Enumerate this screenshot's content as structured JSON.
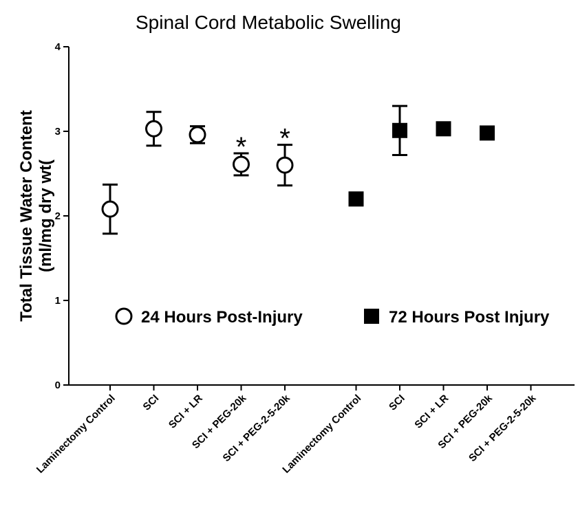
{
  "chart_data": {
    "type": "scatter",
    "title": "Spinal Cord Metabolic Swelling",
    "ylabel": [
      "Total Tissue Water Content",
      "(ml/mg dry wt("
    ],
    "categories": [
      "Laminectomy Control",
      "SCI",
      "SCI + LR",
      "SCI + PEG-20k",
      "SCI + PEG-2-5-20k",
      "Laminectomy Control",
      "SCI",
      "SCI + LR",
      "SCI + PEG-20k",
      "SCI + PEG-2-5-20k"
    ],
    "series": [
      {
        "name": "24 Hours Post-Injury",
        "color": "#000000",
        "marker": "open-circle",
        "values": [
          2.08,
          3.03,
          2.96,
          2.61,
          2.6,
          null,
          null,
          null,
          null,
          null
        ],
        "errors": [
          0.29,
          0.2,
          0.1,
          0.13,
          0.24,
          null,
          null,
          null,
          null,
          null
        ]
      },
      {
        "name": "72 Hours Post Injury",
        "color": "#000000",
        "marker": "filled-square",
        "values": [
          null,
          null,
          null,
          null,
          null,
          2.2,
          3.01,
          3.03,
          2.98,
          null
        ],
        "errors": [
          null,
          null,
          null,
          null,
          null,
          0,
          0.29,
          0,
          0,
          null
        ]
      }
    ],
    "annotations": [
      {
        "text": "*",
        "series": 0,
        "category": 3
      },
      {
        "text": "*",
        "series": 0,
        "category": 4
      }
    ],
    "ylim": [
      0,
      4
    ],
    "yticks": [
      0,
      1,
      2,
      3,
      4
    ]
  }
}
